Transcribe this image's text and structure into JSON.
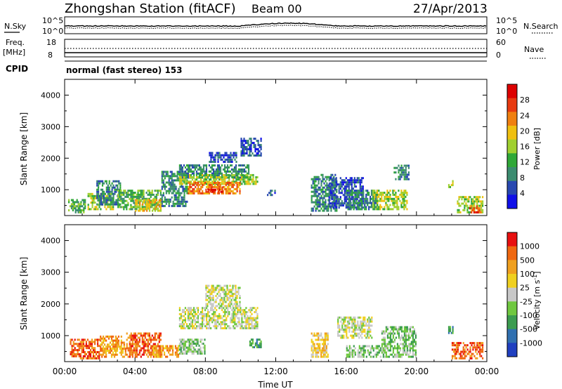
{
  "header": {
    "station": "Zhongshan Station (fitACF)",
    "beam": "Beam 00",
    "date": "27/Apr/2013"
  },
  "status_panels": {
    "nsky_label": "N.Sky",
    "nsky_tick_top": "10^5",
    "nsky_tick_bottom": "10^0",
    "nsearch_label": "N.Search",
    "nsearch_tick_top": "10^5",
    "nsearch_tick_bottom": "10^0",
    "freq_label": "Freq.",
    "freq_unit": "[MHz]",
    "freq_tick_top": "18",
    "freq_tick_bottom": "8",
    "nave_label": "Nave",
    "nave_tick_top": "60",
    "nave_tick_bottom": "0",
    "cpid_label": "CPID",
    "cpid_text": "normal (fast stereo) 153"
  },
  "chart_data": [
    {
      "type": "heatmap",
      "panel": "power",
      "ylabel": "Slant Range [km]",
      "ylim": [
        180,
        4500
      ],
      "yticks": [
        1000,
        2000,
        3000,
        4000
      ],
      "xlim": [
        0,
        24
      ],
      "xticks": [
        0,
        4,
        8,
        12,
        16,
        20,
        24
      ],
      "colorbar_label": "Power [dB]",
      "colorbar_ticks": [
        "4",
        "8",
        "12",
        "16",
        "20",
        "24",
        "28"
      ],
      "colors": [
        "#1010e8",
        "#2848b0",
        "#3c8c70",
        "#30a838",
        "#a0d030",
        "#f0c010",
        "#f08010",
        "#e83a10",
        "#dd0000"
      ],
      "regions": [
        {
          "t": [
            0.2,
            1.2
          ],
          "r": [
            250,
            700
          ],
          "v": 3
        },
        {
          "t": [
            1.3,
            2.8
          ],
          "r": [
            350,
            900
          ],
          "v": 4
        },
        {
          "t": [
            1.8,
            3.2
          ],
          "r": [
            500,
            1300
          ],
          "v": 2
        },
        {
          "t": [
            3.0,
            5.5
          ],
          "r": [
            350,
            1000
          ],
          "v": 3
        },
        {
          "t": [
            4.0,
            5.5
          ],
          "r": [
            300,
            700
          ],
          "v": 5
        },
        {
          "t": [
            5.5,
            7.0
          ],
          "r": [
            450,
            1600
          ],
          "v": 2
        },
        {
          "t": [
            6.5,
            10.5
          ],
          "r": [
            1350,
            1800
          ],
          "v": 2
        },
        {
          "t": [
            6.5,
            11.0
          ],
          "r": [
            1150,
            1500
          ],
          "v": 4
        },
        {
          "t": [
            7.0,
            10.0
          ],
          "r": [
            850,
            1250
          ],
          "v": 6
        },
        {
          "t": [
            8.0,
            9.0
          ],
          "r": [
            900,
            1100
          ],
          "v": 7
        },
        {
          "t": [
            8.2,
            9.8
          ],
          "r": [
            1850,
            2200
          ],
          "v": 1
        },
        {
          "t": [
            10.0,
            11.2
          ],
          "r": [
            2050,
            2650
          ],
          "v": 1
        },
        {
          "t": [
            11.5,
            12.0
          ],
          "r": [
            800,
            1000
          ],
          "v": 1
        },
        {
          "t": [
            14.0,
            15.5
          ],
          "r": [
            300,
            1500
          ],
          "v": 2
        },
        {
          "t": [
            15.0,
            17.0
          ],
          "r": [
            400,
            1400
          ],
          "v": 1
        },
        {
          "t": [
            16.0,
            17.8
          ],
          "r": [
            350,
            1000
          ],
          "v": 2
        },
        {
          "t": [
            17.5,
            19.5
          ],
          "r": [
            350,
            1000
          ],
          "v": 4
        },
        {
          "t": [
            18.7,
            19.6
          ],
          "r": [
            1300,
            1800
          ],
          "v": 2
        },
        {
          "t": [
            21.8,
            22.1
          ],
          "r": [
            1050,
            1300
          ],
          "v": 4
        },
        {
          "t": [
            22.3,
            23.8
          ],
          "r": [
            250,
            800
          ],
          "v": 4
        },
        {
          "t": [
            23.0,
            23.7
          ],
          "r": [
            250,
            500
          ],
          "v": 7
        }
      ]
    },
    {
      "type": "heatmap",
      "panel": "velocity",
      "ylabel": "Slant Range [km]",
      "ylim": [
        180,
        4500
      ],
      "yticks": [
        1000,
        2000,
        3000,
        4000
      ],
      "xlim": [
        0,
        24
      ],
      "xticks": [
        0,
        4,
        8,
        12,
        16,
        20,
        24
      ],
      "xlabel": "Time UT",
      "xticklabels": [
        "00:00",
        "04:00",
        "08:00",
        "12:00",
        "16:00",
        "20:00",
        "00:00"
      ],
      "colorbar_label": "Velocity [m s^-1]",
      "colorbar_ticks": [
        "1000",
        "500",
        "100",
        "25",
        "-25",
        "-100",
        "-500",
        "-1000"
      ],
      "colors": [
        "#2040c0",
        "#3070b0",
        "#3c9c50",
        "#70c840",
        "#c8c8c8",
        "#f0d020",
        "#f0a020",
        "#f06810",
        "#e81010"
      ],
      "regions": [
        {
          "t": [
            0.3,
            2.0
          ],
          "r": [
            250,
            900
          ],
          "v": 7
        },
        {
          "t": [
            2.0,
            3.5
          ],
          "r": [
            300,
            1000
          ],
          "v": 6
        },
        {
          "t": [
            3.5,
            5.5
          ],
          "r": [
            300,
            1100
          ],
          "v": 7
        },
        {
          "t": [
            5.0,
            6.5
          ],
          "r": [
            300,
            700
          ],
          "v": 6
        },
        {
          "t": [
            6.5,
            11.0
          ],
          "r": [
            1200,
            1900
          ],
          "v": 4
        },
        {
          "t": [
            8.0,
            10.0
          ],
          "r": [
            1900,
            2600
          ],
          "v": 4
        },
        {
          "t": [
            6.5,
            8.0
          ],
          "r": [
            400,
            900
          ],
          "v": 3
        },
        {
          "t": [
            10.5,
            11.2
          ],
          "r": [
            600,
            900
          ],
          "v": 2
        },
        {
          "t": [
            14.0,
            15.0
          ],
          "r": [
            300,
            1100
          ],
          "v": 5
        },
        {
          "t": [
            15.5,
            17.5
          ],
          "r": [
            900,
            1600
          ],
          "v": 4
        },
        {
          "t": [
            16.0,
            18.0
          ],
          "r": [
            300,
            700
          ],
          "v": 3
        },
        {
          "t": [
            18.0,
            20.0
          ],
          "r": [
            300,
            1300
          ],
          "v": 3
        },
        {
          "t": [
            21.8,
            22.1
          ],
          "r": [
            1050,
            1300
          ],
          "v": 2
        },
        {
          "t": [
            22.0,
            23.8
          ],
          "r": [
            250,
            800
          ],
          "v": 7
        }
      ]
    }
  ]
}
